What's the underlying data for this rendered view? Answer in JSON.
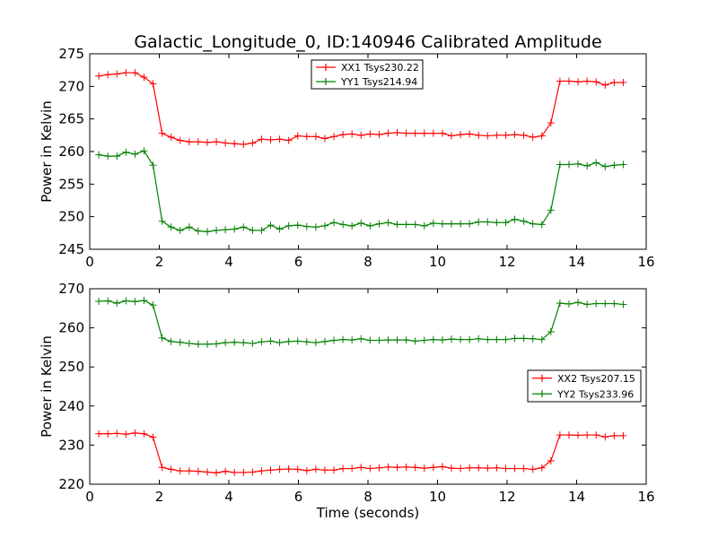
{
  "chart_data": [
    {
      "type": "line",
      "title": "Galactic_Longitude_0, ID:140946 Calibrated Amplitude",
      "xlabel": "",
      "ylabel": "Power in Kelvin",
      "xlim": [
        0,
        16
      ],
      "ylim": [
        245,
        275
      ],
      "xticks": [
        "0",
        "2",
        "4",
        "6",
        "8",
        "10",
        "12",
        "14",
        "16"
      ],
      "yticks": [
        "245",
        "250",
        "255",
        "260",
        "265",
        "270",
        "275"
      ],
      "legend_position": "upper-center",
      "x": [
        0.26,
        0.52,
        0.78,
        1.04,
        1.3,
        1.56,
        1.82,
        2.08,
        2.34,
        2.6,
        2.86,
        3.12,
        3.38,
        3.64,
        3.9,
        4.16,
        4.42,
        4.68,
        4.94,
        5.2,
        5.46,
        5.72,
        5.98,
        6.24,
        6.5,
        6.76,
        7.02,
        7.28,
        7.54,
        7.8,
        8.06,
        8.32,
        8.58,
        8.84,
        9.1,
        9.36,
        9.62,
        9.88,
        10.14,
        10.4,
        10.66,
        10.92,
        11.18,
        11.44,
        11.7,
        11.96,
        12.22,
        12.48,
        12.74,
        13.0,
        13.26,
        13.52,
        13.78,
        14.04,
        14.3,
        14.56,
        14.82,
        15.08,
        15.34
      ],
      "series": [
        {
          "name": "XX1 Tsys230.22",
          "color": "#ff0000",
          "values": [
            271.6,
            271.8,
            271.9,
            272.1,
            272.1,
            271.4,
            270.4,
            262.8,
            262.2,
            261.7,
            261.5,
            261.5,
            261.4,
            261.5,
            261.3,
            261.2,
            261.1,
            261.3,
            261.9,
            261.8,
            261.9,
            261.7,
            262.4,
            262.3,
            262.3,
            262.0,
            262.3,
            262.6,
            262.7,
            262.5,
            262.7,
            262.6,
            262.8,
            262.9,
            262.8,
            262.8,
            262.8,
            262.8,
            262.8,
            262.4,
            262.6,
            262.7,
            262.5,
            262.4,
            262.5,
            262.5,
            262.6,
            262.5,
            262.2,
            262.4,
            264.4,
            270.8,
            270.8,
            270.7,
            270.8,
            270.7,
            270.2,
            270.6,
            270.6
          ]
        },
        {
          "name": "YY1 Tsys214.94",
          "color": "#008000",
          "values": [
            259.5,
            259.3,
            259.3,
            259.9,
            259.6,
            260.1,
            257.9,
            249.3,
            248.4,
            247.9,
            248.4,
            247.8,
            247.7,
            247.9,
            248.0,
            248.1,
            248.4,
            247.9,
            247.9,
            248.7,
            248.1,
            248.6,
            248.7,
            248.5,
            248.4,
            248.6,
            249.1,
            248.8,
            248.6,
            249.0,
            248.6,
            248.9,
            249.1,
            248.8,
            248.8,
            248.8,
            248.6,
            249.0,
            248.9,
            248.9,
            248.9,
            248.9,
            249.2,
            249.2,
            249.1,
            249.1,
            249.6,
            249.3,
            248.9,
            248.8,
            251.0,
            258.0,
            258.0,
            258.1,
            257.8,
            258.3,
            257.7,
            257.9,
            258.0
          ]
        }
      ]
    },
    {
      "type": "line",
      "title": "",
      "xlabel": "Time (seconds)",
      "ylabel": "Power in Kelvin",
      "xlim": [
        0,
        16
      ],
      "ylim": [
        220,
        270
      ],
      "xticks": [
        "0",
        "2",
        "4",
        "6",
        "8",
        "10",
        "12",
        "14",
        "16"
      ],
      "yticks": [
        "220",
        "230",
        "240",
        "250",
        "260",
        "270"
      ],
      "legend_position": "center-right",
      "x": [
        0.26,
        0.52,
        0.78,
        1.04,
        1.3,
        1.56,
        1.82,
        2.08,
        2.34,
        2.6,
        2.86,
        3.12,
        3.38,
        3.64,
        3.9,
        4.16,
        4.42,
        4.68,
        4.94,
        5.2,
        5.46,
        5.72,
        5.98,
        6.24,
        6.5,
        6.76,
        7.02,
        7.28,
        7.54,
        7.8,
        8.06,
        8.32,
        8.58,
        8.84,
        9.1,
        9.36,
        9.62,
        9.88,
        10.14,
        10.4,
        10.66,
        10.92,
        11.18,
        11.44,
        11.7,
        11.96,
        12.22,
        12.48,
        12.74,
        13.0,
        13.26,
        13.52,
        13.78,
        14.04,
        14.3,
        14.56,
        14.82,
        15.08,
        15.34
      ],
      "series": [
        {
          "name": "XX2 Tsys207.15",
          "color": "#ff0000",
          "values": [
            232.9,
            232.9,
            233.0,
            232.8,
            233.1,
            232.9,
            232.0,
            224.3,
            223.8,
            223.4,
            223.4,
            223.3,
            223.1,
            222.9,
            223.3,
            223.0,
            223.0,
            223.1,
            223.4,
            223.6,
            223.8,
            223.9,
            223.8,
            223.5,
            223.8,
            223.6,
            223.6,
            224.0,
            224.0,
            224.3,
            224.0,
            224.2,
            224.4,
            224.3,
            224.4,
            224.3,
            224.1,
            224.3,
            224.5,
            224.1,
            224.0,
            224.2,
            224.2,
            224.1,
            224.2,
            224.0,
            224.0,
            224.0,
            223.8,
            224.2,
            226.0,
            232.6,
            232.6,
            232.5,
            232.6,
            232.6,
            232.1,
            232.4,
            232.4
          ]
        },
        {
          "name": "YY2 Tsys233.96",
          "color": "#008000",
          "values": [
            266.8,
            266.9,
            266.3,
            266.9,
            266.7,
            267.0,
            265.8,
            257.4,
            256.5,
            256.3,
            256.0,
            255.8,
            255.8,
            255.9,
            256.2,
            256.3,
            256.2,
            256.0,
            256.4,
            256.6,
            256.2,
            256.5,
            256.6,
            256.4,
            256.2,
            256.5,
            256.8,
            257.0,
            256.9,
            257.2,
            256.8,
            256.8,
            256.9,
            256.9,
            256.9,
            256.6,
            256.8,
            257.0,
            256.9,
            257.1,
            257.0,
            257.0,
            257.2,
            257.0,
            257.0,
            257.0,
            257.3,
            257.3,
            257.2,
            257.0,
            259.0,
            266.3,
            266.1,
            266.5,
            266.0,
            266.2,
            266.2,
            266.2,
            266.0
          ]
        }
      ]
    }
  ]
}
